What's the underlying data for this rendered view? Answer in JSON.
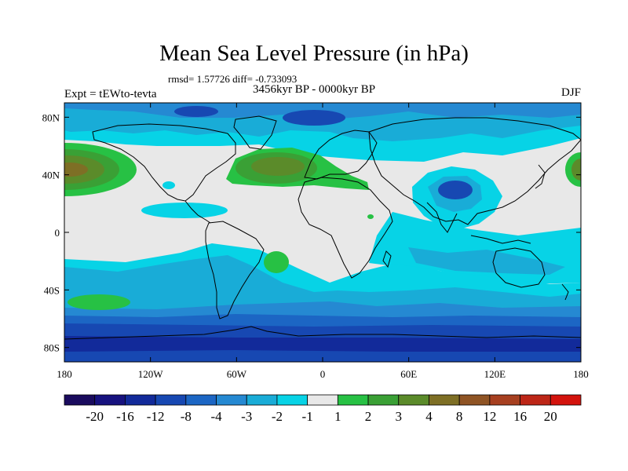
{
  "title": "Mean Sea Level Pressure (in hPa)",
  "stats": "rmsd= 1.57726 diff= -0.733093",
  "period": "3456kyr BP - 0000kyr BP",
  "experiment": "Expt = tEWto-tevta",
  "season": "DJF",
  "chart_data": {
    "type": "heatmap",
    "variable": "Mean Sea Level Pressure difference",
    "units": "hPa",
    "projection": "cylindrical equidistant",
    "lon_range": [
      -180,
      180
    ],
    "lat_range": [
      -90,
      90
    ],
    "x_tick_labels": [
      "180",
      "120W",
      "60W",
      "0",
      "60E",
      "120E",
      "180"
    ],
    "x_tick_values": [
      -180,
      -120,
      -60,
      0,
      60,
      120,
      180
    ],
    "y_tick_labels": [
      "80N",
      "40N",
      "0",
      "40S",
      "80S"
    ],
    "y_tick_values": [
      80,
      40,
      0,
      -40,
      -80
    ],
    "colorbar_labels": [
      "-20",
      "-16",
      "-12",
      "-8",
      "-4",
      "-3",
      "-2",
      "-1",
      "1",
      "2",
      "3",
      "4",
      "8",
      "12",
      "16",
      "20"
    ],
    "colorbar_colors": [
      "#1a0b5e",
      "#17127f",
      "#122a9a",
      "#1748b2",
      "#1c66c4",
      "#2589d2",
      "#19acd7",
      "#07d3e6",
      "#e8e8e8",
      "#27c144",
      "#3aa035",
      "#5b8b2a",
      "#7e6f25",
      "#8f5424",
      "#a74020",
      "#bd2617",
      "#d3130d"
    ]
  }
}
